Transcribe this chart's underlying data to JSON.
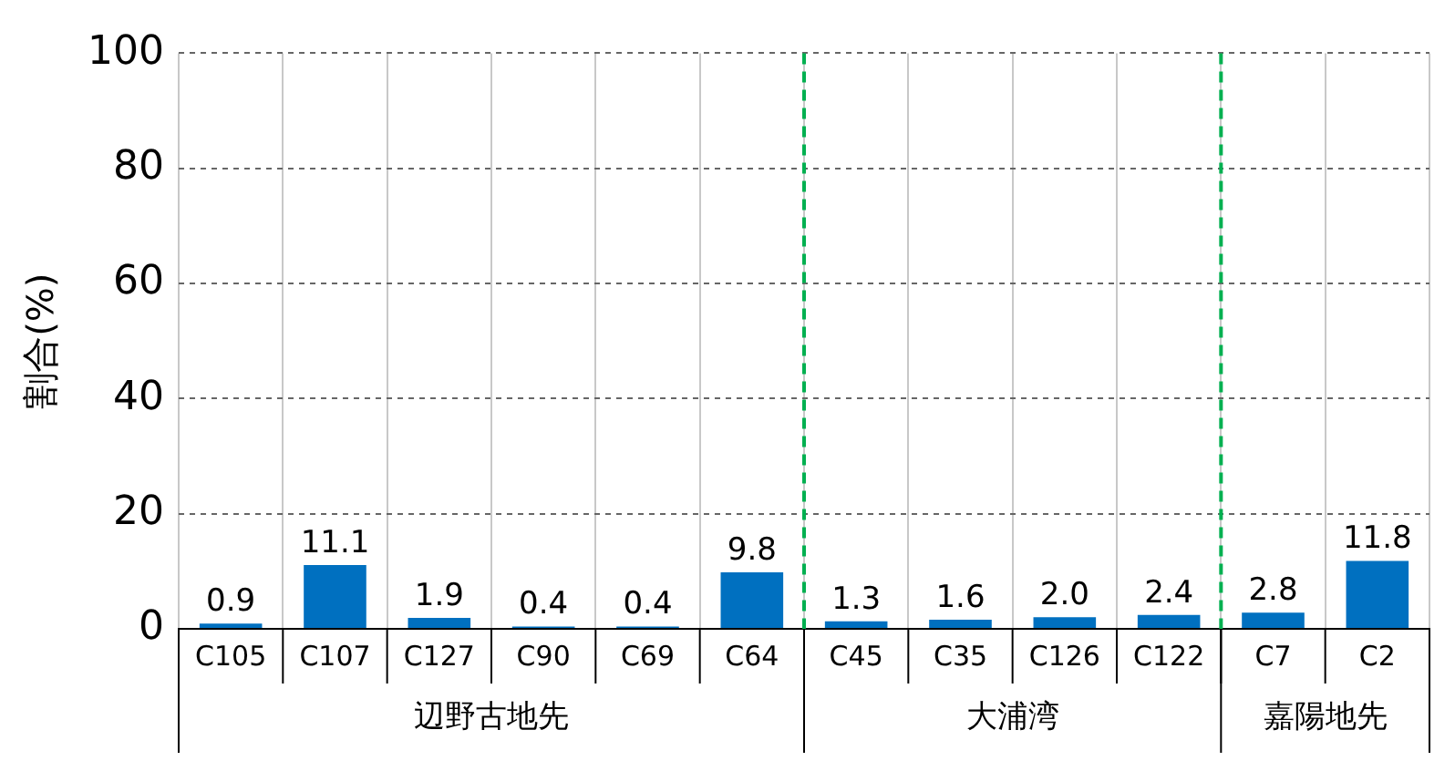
{
  "chart_data": {
    "type": "bar",
    "ylabel": "割合(%)",
    "categories": [
      "C105",
      "C107",
      "C127",
      "C90",
      "C69",
      "C64",
      "C45",
      "C35",
      "C126",
      "C122",
      "C7",
      "C2"
    ],
    "values": [
      0.9,
      11.1,
      1.9,
      0.4,
      0.4,
      9.8,
      1.3,
      1.6,
      2.0,
      2.4,
      2.8,
      11.8
    ],
    "value_labels": [
      "0.9",
      "11.1",
      "1.9",
      "0.4",
      "0.4",
      "9.8",
      "1.3",
      "1.6",
      "2.0",
      "2.4",
      "2.8",
      "11.8"
    ],
    "color": "#0070c0",
    "ylim": [
      0,
      100
    ],
    "yticks": [
      0,
      20,
      40,
      60,
      80,
      100
    ],
    "grid": true,
    "legend": false,
    "annotations": [
      "辺野古地先",
      "大浦湾",
      "嘉陽地先"
    ]
  }
}
